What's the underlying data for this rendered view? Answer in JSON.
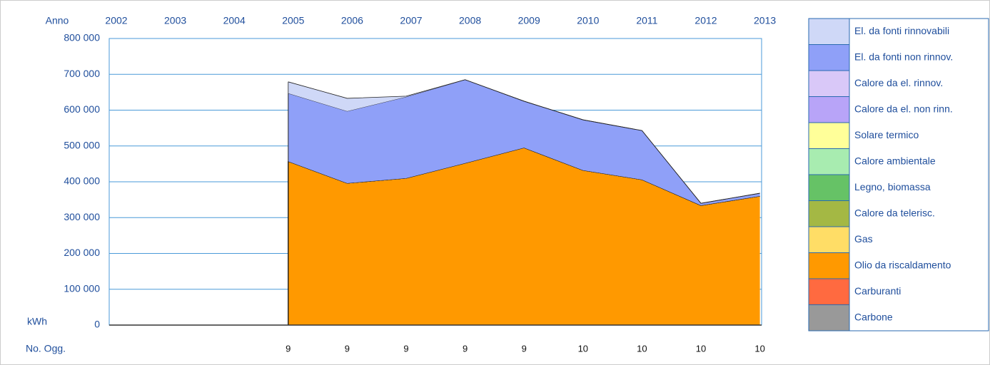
{
  "chart_data": {
    "type": "stacked-area",
    "x_label": "Anno",
    "y_label": "kWh",
    "count_label": "No. Ogg.",
    "categories": [
      "2002",
      "2003",
      "2004",
      "2005",
      "2006",
      "2007",
      "2008",
      "2009",
      "2010",
      "2011",
      "2012",
      "2013"
    ],
    "counts": [
      null,
      null,
      null,
      9,
      9,
      9,
      9,
      9,
      10,
      10,
      10,
      10
    ],
    "ylim": [
      0,
      800000
    ],
    "yticks": [
      0,
      {
        "value": 100000,
        "label": "100 000"
      },
      {
        "value": 200000,
        "label": "200 000"
      },
      {
        "value": 300000,
        "label": "300 000"
      },
      {
        "value": 400000,
        "label": "400 000"
      },
      {
        "value": 500000,
        "label": "500 000"
      },
      {
        "value": 600000,
        "label": "600 000"
      },
      {
        "value": 700000,
        "label": "700 000"
      },
      {
        "value": 800000,
        "label": "800 000"
      }
    ],
    "grid": true,
    "series": [
      {
        "name": "Carbone",
        "color": "#999999",
        "values": [
          null,
          null,
          null,
          0,
          0,
          0,
          0,
          0,
          0,
          0,
          0,
          0
        ]
      },
      {
        "name": "Carburanti",
        "color": "#ff6a40",
        "values": [
          null,
          null,
          null,
          0,
          0,
          0,
          0,
          0,
          0,
          0,
          0,
          0
        ]
      },
      {
        "name": "Olio da riscaldamento",
        "color": "#ff9900",
        "values": [
          null,
          null,
          null,
          457000,
          396000,
          410000,
          452000,
          495000,
          432000,
          406000,
          334000,
          360000
        ]
      },
      {
        "name": "Gas",
        "color": "#ffdd66",
        "values": [
          null,
          null,
          null,
          0,
          0,
          0,
          0,
          0,
          0,
          0,
          0,
          0
        ]
      },
      {
        "name": "Calore da telerisc.",
        "color": "#a4b844",
        "values": [
          null,
          null,
          null,
          0,
          0,
          0,
          0,
          0,
          0,
          0,
          0,
          0
        ]
      },
      {
        "name": "Legno, biomassa",
        "color": "#66c266",
        "values": [
          null,
          null,
          null,
          0,
          0,
          0,
          0,
          0,
          0,
          0,
          0,
          0
        ]
      },
      {
        "name": "Calore ambientale",
        "color": "#a8ecb0",
        "values": [
          null,
          null,
          null,
          0,
          0,
          0,
          0,
          0,
          0,
          0,
          0,
          0
        ]
      },
      {
        "name": "Solare termico",
        "color": "#ffff99",
        "values": [
          null,
          null,
          null,
          0,
          0,
          0,
          0,
          0,
          0,
          0,
          0,
          0
        ]
      },
      {
        "name": "Calore da el. non rinn.",
        "color": "#b8a4f8",
        "values": [
          null,
          null,
          null,
          0,
          0,
          0,
          0,
          0,
          0,
          0,
          0,
          0
        ]
      },
      {
        "name": "Calore da el. rinnov.",
        "color": "#d9c8f8",
        "values": [
          null,
          null,
          null,
          0,
          0,
          0,
          0,
          0,
          0,
          0,
          0,
          0
        ]
      },
      {
        "name": "El. da fonti non rinnov.",
        "color": "#8fa0f8",
        "values": [
          null,
          null,
          null,
          190000,
          201000,
          227000,
          233000,
          130000,
          141000,
          137000,
          6000,
          8000
        ]
      },
      {
        "name": "El. da fonti rinnovabili",
        "color": "#cfd8f7",
        "values": [
          null,
          null,
          null,
          32000,
          36000,
          2000,
          0,
          0,
          0,
          0,
          0,
          0
        ]
      }
    ]
  }
}
